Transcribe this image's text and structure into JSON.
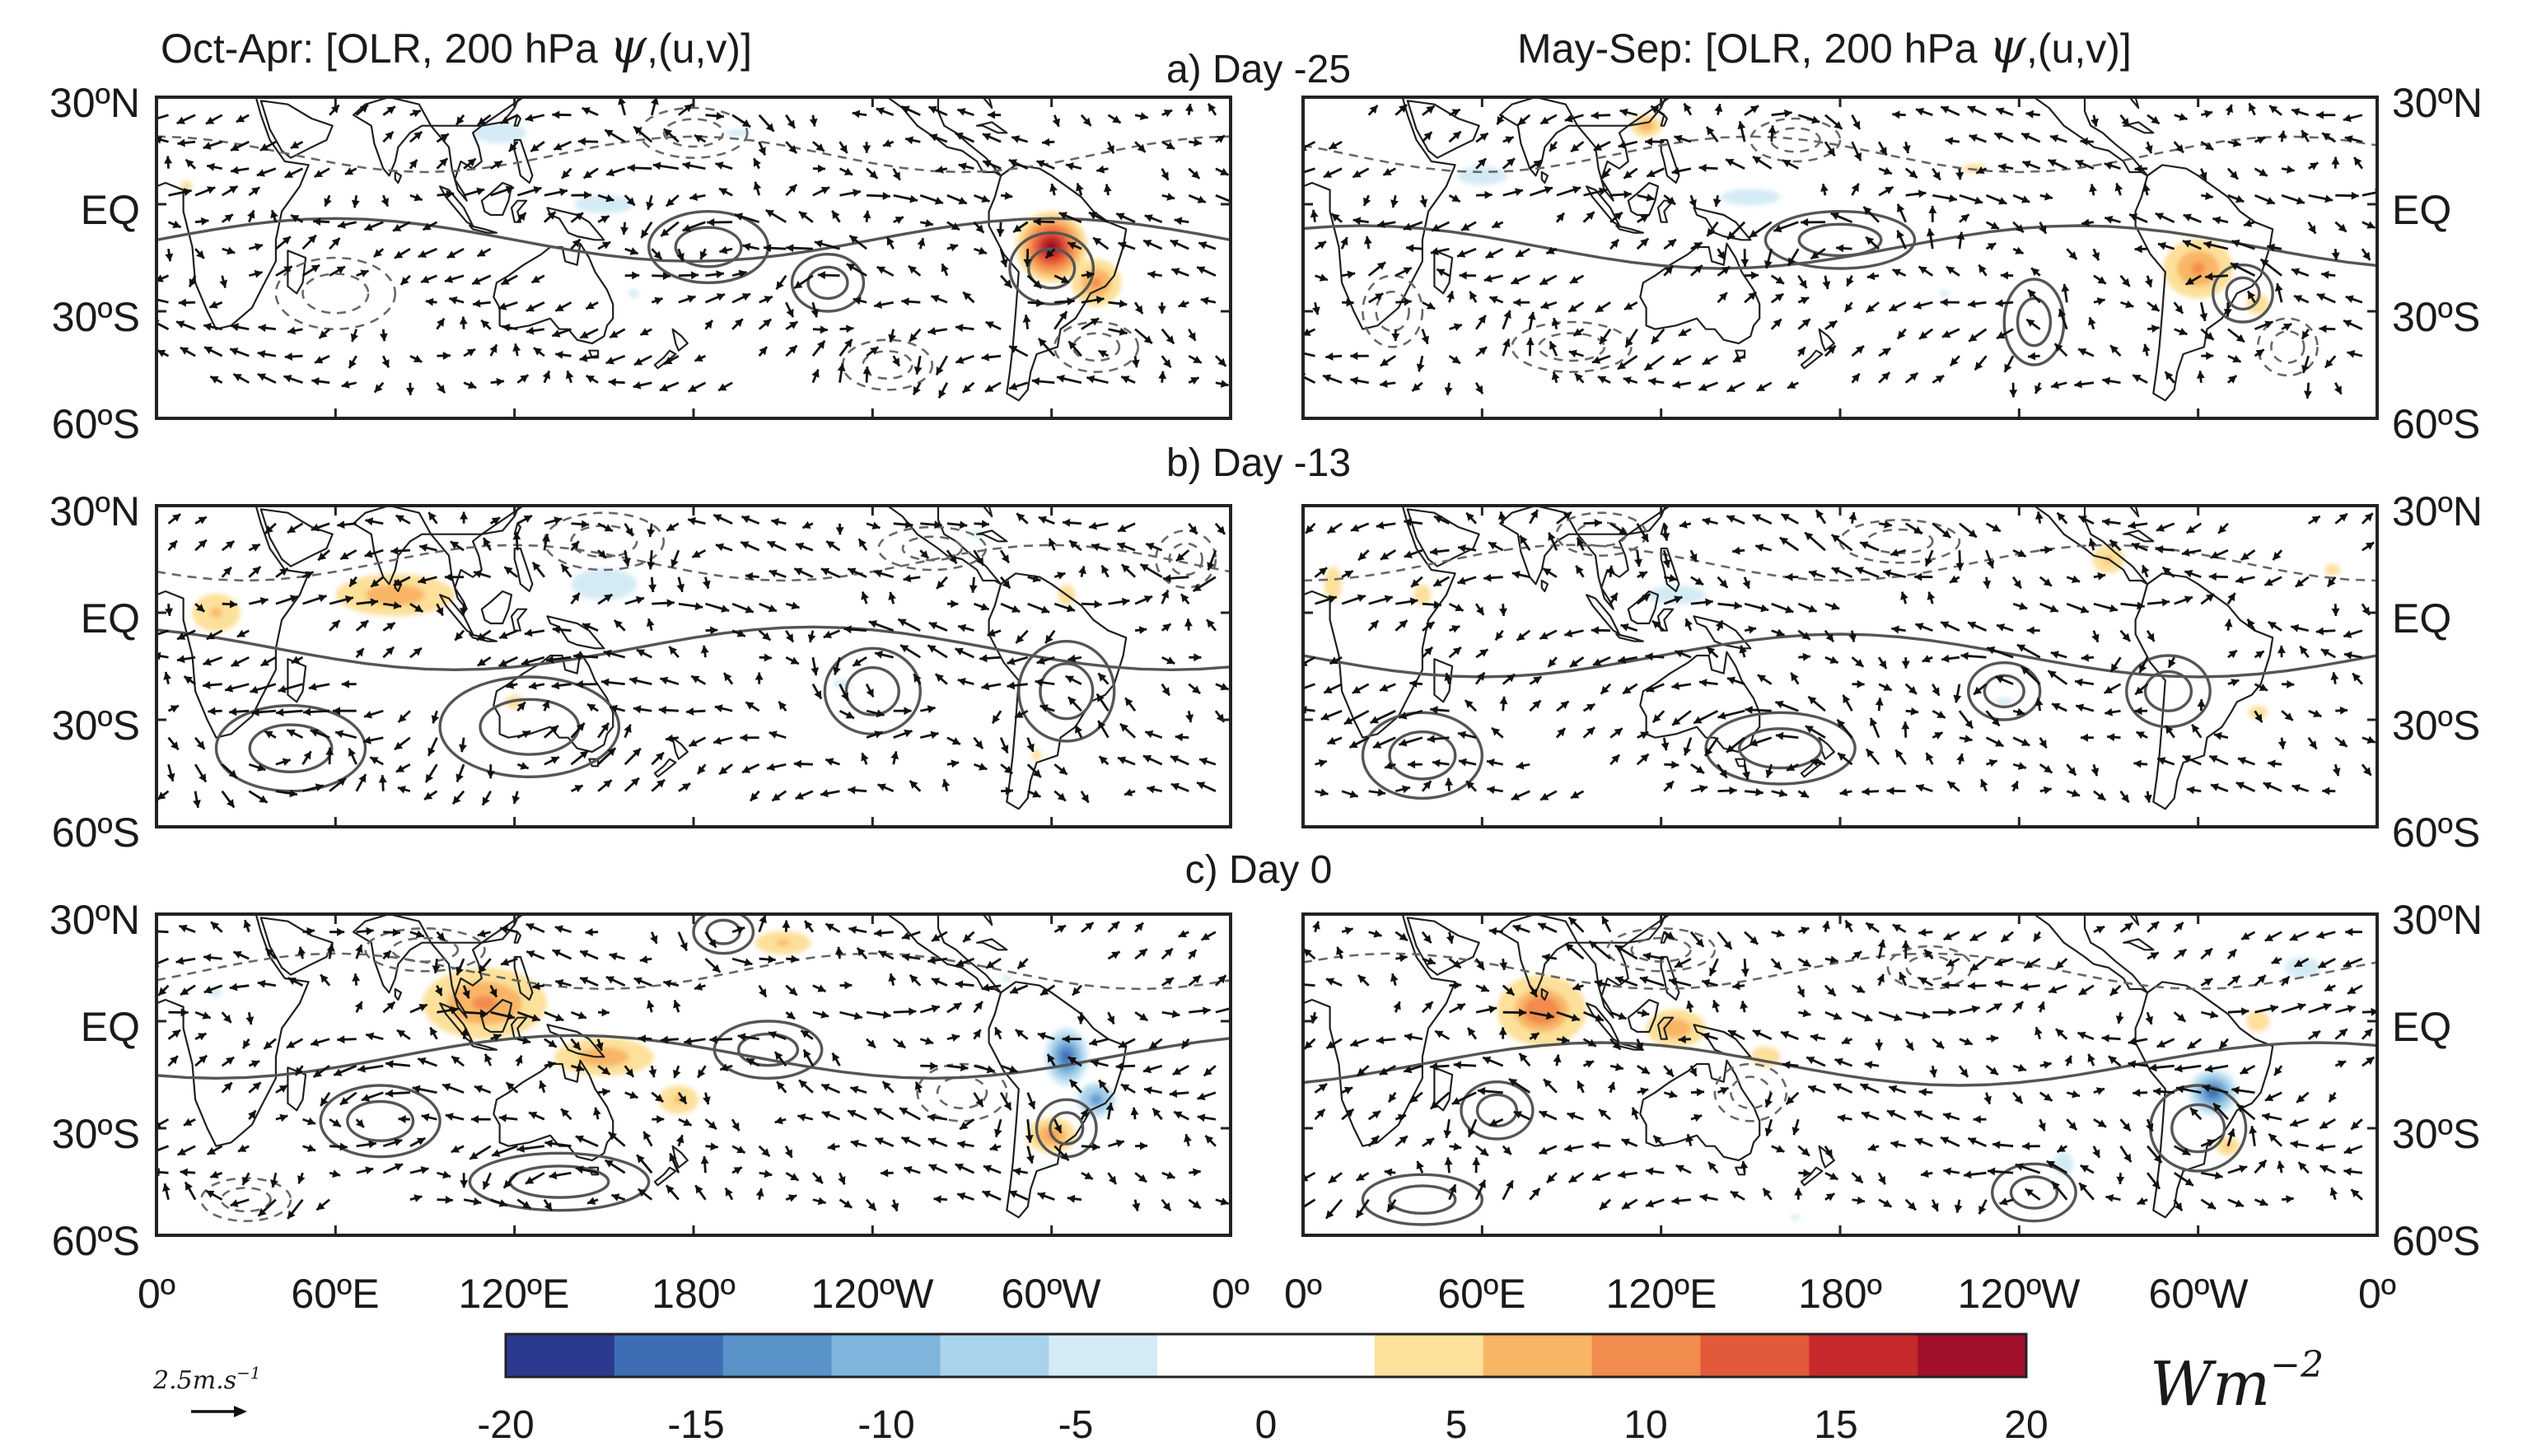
{
  "chart_data": {
    "type": "heatmap",
    "variable": "OLR anomaly composite with 200 hPa streamfunction contours and (u,v) wind vectors",
    "column_titles": {
      "left": {
        "text": "Oct-Apr: [OLR, 200 hPa ",
        "psi": "ψ",
        "tail": ",(u,v)]"
      },
      "right": {
        "text": "May-Sep: [OLR, 200 hPa ",
        "psi": "ψ",
        "tail": ",(u,v)]"
      }
    },
    "rows": [
      {
        "id": "a",
        "title": "a) Day -25"
      },
      {
        "id": "b",
        "title": "b) Day -13"
      },
      {
        "id": "c",
        "title": "c) Day 0"
      }
    ],
    "y_ticks": [
      "30ºN",
      "EQ",
      "30ºS",
      "60ºS"
    ],
    "x_ticks": [
      "0º",
      "60ºE",
      "120ºE",
      "180º",
      "120ºW",
      "60ºW",
      "0º"
    ],
    "lat_range": [
      -60,
      30
    ],
    "lon_range": [
      0,
      360
    ],
    "colorbar": {
      "ticks": [
        "-20",
        "-15",
        "-10",
        "-5",
        "0",
        "5",
        "10",
        "15",
        "20"
      ],
      "range": [
        -20,
        20
      ],
      "unit": "Wm",
      "unit_exponent": "−2",
      "colors": [
        "#2b3a8f",
        "#3f6db3",
        "#5a93c9",
        "#7fb4dc",
        "#a9d3ea",
        "#d4ebf6",
        "#ffffff",
        "#ffffff",
        "#fde09a",
        "#f9b566",
        "#f28b4e",
        "#e35a3a",
        "#c72a2c",
        "#a10f2b"
      ]
    },
    "reference_vector": {
      "label": "2.5m.s",
      "exponent": "−1"
    },
    "panels": [
      {
        "id": "a-left",
        "row": 0,
        "col": 0,
        "olr_blobs": [
          {
            "lon": 300,
            "lat": -12,
            "v": 18,
            "rx": 12,
            "ry": 10
          },
          {
            "lon": 315,
            "lat": -22,
            "v": 9,
            "rx": 10,
            "ry": 8
          },
          {
            "lon": 115,
            "lat": 20,
            "v": -5,
            "rx": 18,
            "ry": 6
          },
          {
            "lon": 150,
            "lat": 0,
            "v": -4,
            "rx": 30,
            "ry": 8
          },
          {
            "lon": 195,
            "lat": 20,
            "v": -3,
            "rx": 25,
            "ry": 6
          },
          {
            "lon": 160,
            "lat": -25,
            "v": -3,
            "rx": 10,
            "ry": 8
          },
          {
            "lon": 10,
            "lat": 5,
            "v": 4,
            "rx": 6,
            "ry": 5
          }
        ],
        "psi_contours": [
          {
            "lon": 185,
            "lat": -12,
            "rx": 20,
            "ry": 10,
            "sign": 1
          },
          {
            "lon": 225,
            "lat": -22,
            "rx": 12,
            "ry": 8,
            "sign": 1
          },
          {
            "lon": 300,
            "lat": -18,
            "rx": 14,
            "ry": 10,
            "sign": 1
          },
          {
            "lon": 60,
            "lat": -25,
            "rx": 20,
            "ry": 10,
            "sign": -1
          },
          {
            "lon": 180,
            "lat": 20,
            "rx": 18,
            "ry": 7,
            "sign": -1
          },
          {
            "lon": 245,
            "lat": -45,
            "rx": 15,
            "ry": 7,
            "sign": -1
          },
          {
            "lon": 315,
            "lat": -40,
            "rx": 14,
            "ry": 7,
            "sign": -1
          }
        ]
      },
      {
        "id": "a-right",
        "row": 0,
        "col": 1,
        "olr_blobs": [
          {
            "lon": 300,
            "lat": -18,
            "v": 10,
            "rx": 14,
            "ry": 10
          },
          {
            "lon": 320,
            "lat": -28,
            "v": 5,
            "rx": 8,
            "ry": 6
          },
          {
            "lon": 115,
            "lat": 22,
            "v": 8,
            "rx": 8,
            "ry": 5
          },
          {
            "lon": 225,
            "lat": 10,
            "v": 4,
            "rx": 12,
            "ry": 4
          },
          {
            "lon": 60,
            "lat": 8,
            "v": -4,
            "rx": 25,
            "ry": 8
          },
          {
            "lon": 150,
            "lat": 2,
            "v": -4,
            "rx": 30,
            "ry": 7
          },
          {
            "lon": 215,
            "lat": -25,
            "v": -3,
            "rx": 10,
            "ry": 6
          }
        ],
        "psi_contours": [
          {
            "lon": 180,
            "lat": -10,
            "rx": 25,
            "ry": 8,
            "sign": 1
          },
          {
            "lon": 245,
            "lat": -33,
            "rx": 10,
            "ry": 12,
            "sign": 1
          },
          {
            "lon": 315,
            "lat": -25,
            "rx": 10,
            "ry": 8,
            "sign": 1
          },
          {
            "lon": 30,
            "lat": -30,
            "rx": 10,
            "ry": 10,
            "sign": -1
          },
          {
            "lon": 90,
            "lat": -40,
            "rx": 20,
            "ry": 7,
            "sign": -1
          },
          {
            "lon": 165,
            "lat": 18,
            "rx": 15,
            "ry": 6,
            "sign": -1
          },
          {
            "lon": 330,
            "lat": -40,
            "rx": 10,
            "ry": 8,
            "sign": -1
          }
        ]
      },
      {
        "id": "b-left",
        "row": 1,
        "col": 0,
        "olr_blobs": [
          {
            "lon": 80,
            "lat": 5,
            "v": 8,
            "rx": 30,
            "ry": 9
          },
          {
            "lon": 20,
            "lat": 0,
            "v": 6,
            "rx": 12,
            "ry": 8
          },
          {
            "lon": 120,
            "lat": -25,
            "v": 4,
            "rx": 10,
            "ry": 6
          },
          {
            "lon": 305,
            "lat": 5,
            "v": 5,
            "rx": 6,
            "ry": 6
          },
          {
            "lon": 295,
            "lat": -40,
            "v": 4,
            "rx": 5,
            "ry": 5
          },
          {
            "lon": 150,
            "lat": 8,
            "v": -5,
            "rx": 22,
            "ry": 9
          },
          {
            "lon": 230,
            "lat": -20,
            "v": -3,
            "rx": 20,
            "ry": 8
          },
          {
            "lon": 275,
            "lat": 22,
            "v": -3,
            "rx": 12,
            "ry": 6
          }
        ],
        "psi_contours": [
          {
            "lon": 240,
            "lat": -22,
            "rx": 16,
            "ry": 12,
            "sign": 1
          },
          {
            "lon": 305,
            "lat": -22,
            "rx": 16,
            "ry": 14,
            "sign": 1
          },
          {
            "lon": 45,
            "lat": -38,
            "rx": 25,
            "ry": 12,
            "sign": 1
          },
          {
            "lon": 125,
            "lat": -32,
            "rx": 30,
            "ry": 14,
            "sign": 1
          },
          {
            "lon": 150,
            "lat": 20,
            "rx": 20,
            "ry": 8,
            "sign": -1
          },
          {
            "lon": 260,
            "lat": 18,
            "rx": 18,
            "ry": 6,
            "sign": -1
          },
          {
            "lon": 345,
            "lat": 15,
            "rx": 10,
            "ry": 8,
            "sign": -1
          }
        ]
      },
      {
        "id": "b-right",
        "row": 1,
        "col": 1,
        "olr_blobs": [
          {
            "lon": 10,
            "lat": 8,
            "v": 5,
            "rx": 6,
            "ry": 10
          },
          {
            "lon": 40,
            "lat": 5,
            "v": 5,
            "rx": 6,
            "ry": 6
          },
          {
            "lon": 270,
            "lat": 15,
            "v": 6,
            "rx": 8,
            "ry": 6
          },
          {
            "lon": 345,
            "lat": 12,
            "v": 4,
            "rx": 8,
            "ry": 5
          },
          {
            "lon": 320,
            "lat": -28,
            "v": 4,
            "rx": 10,
            "ry": 6
          },
          {
            "lon": 125,
            "lat": 5,
            "v": -4,
            "rx": 30,
            "ry": 8
          },
          {
            "lon": 235,
            "lat": -25,
            "v": -3,
            "rx": 18,
            "ry": 7
          }
        ],
        "psi_contours": [
          {
            "lon": 235,
            "lat": -22,
            "rx": 12,
            "ry": 8,
            "sign": 1
          },
          {
            "lon": 290,
            "lat": -22,
            "rx": 14,
            "ry": 10,
            "sign": 1
          },
          {
            "lon": 40,
            "lat": -40,
            "rx": 20,
            "ry": 12,
            "sign": 1
          },
          {
            "lon": 160,
            "lat": -38,
            "rx": 25,
            "ry": 10,
            "sign": 1
          },
          {
            "lon": 100,
            "lat": 22,
            "rx": 15,
            "ry": 6,
            "sign": -1
          },
          {
            "lon": 200,
            "lat": 20,
            "rx": 20,
            "ry": 6,
            "sign": -1
          }
        ]
      },
      {
        "id": "c-left",
        "row": 2,
        "col": 0,
        "olr_blobs": [
          {
            "lon": 110,
            "lat": 5,
            "v": 9,
            "rx": 25,
            "ry": 12
          },
          {
            "lon": 150,
            "lat": -10,
            "v": 7,
            "rx": 25,
            "ry": 8
          },
          {
            "lon": 175,
            "lat": -22,
            "v": 6,
            "rx": 10,
            "ry": 6
          },
          {
            "lon": 210,
            "lat": 22,
            "v": 6,
            "rx": 14,
            "ry": 5
          },
          {
            "lon": 300,
            "lat": -32,
            "v": 10,
            "rx": 10,
            "ry": 6
          },
          {
            "lon": 305,
            "lat": -10,
            "v": -16,
            "rx": 9,
            "ry": 10
          },
          {
            "lon": 315,
            "lat": -22,
            "v": -12,
            "rx": 8,
            "ry": 6
          },
          {
            "lon": 20,
            "lat": 8,
            "v": -3,
            "rx": 12,
            "ry": 8
          },
          {
            "lon": 285,
            "lat": 12,
            "v": -3,
            "rx": 10,
            "ry": 6
          }
        ],
        "psi_contours": [
          {
            "lon": 190,
            "lat": 25,
            "rx": 10,
            "ry": 6,
            "sign": 1
          },
          {
            "lon": 205,
            "lat": -8,
            "rx": 18,
            "ry": 8,
            "sign": 1
          },
          {
            "lon": 305,
            "lat": -30,
            "rx": 10,
            "ry": 8,
            "sign": 1
          },
          {
            "lon": 75,
            "lat": -28,
            "rx": 20,
            "ry": 10,
            "sign": 1
          },
          {
            "lon": 135,
            "lat": -45,
            "rx": 30,
            "ry": 8,
            "sign": 1
          },
          {
            "lon": 270,
            "lat": -20,
            "rx": 15,
            "ry": 8,
            "sign": -1
          },
          {
            "lon": 90,
            "lat": 20,
            "rx": 20,
            "ry": 6,
            "sign": -1
          },
          {
            "lon": 30,
            "lat": -50,
            "rx": 15,
            "ry": 6,
            "sign": -1
          }
        ]
      },
      {
        "id": "c-right",
        "row": 2,
        "col": 1,
        "olr_blobs": [
          {
            "lon": 80,
            "lat": 3,
            "v": 11,
            "rx": 18,
            "ry": 12
          },
          {
            "lon": 125,
            "lat": -2,
            "v": 7,
            "rx": 15,
            "ry": 8
          },
          {
            "lon": 155,
            "lat": -10,
            "v": 5,
            "rx": 10,
            "ry": 6
          },
          {
            "lon": 320,
            "lat": 0,
            "v": 5,
            "rx": 8,
            "ry": 6
          },
          {
            "lon": 305,
            "lat": -20,
            "v": -15,
            "rx": 10,
            "ry": 8
          },
          {
            "lon": 310,
            "lat": -35,
            "v": 6,
            "rx": 6,
            "ry": 4
          },
          {
            "lon": 335,
            "lat": 15,
            "v": -5,
            "rx": 12,
            "ry": 6
          },
          {
            "lon": 255,
            "lat": -40,
            "v": -4,
            "rx": 10,
            "ry": 10
          },
          {
            "lon": 165,
            "lat": -55,
            "v": -3,
            "rx": 10,
            "ry": 5
          }
        ],
        "psi_contours": [
          {
            "lon": 300,
            "lat": -30,
            "rx": 16,
            "ry": 12,
            "sign": 1
          },
          {
            "lon": 65,
            "lat": -25,
            "rx": 12,
            "ry": 8,
            "sign": 1
          },
          {
            "lon": 40,
            "lat": -50,
            "rx": 20,
            "ry": 7,
            "sign": 1
          },
          {
            "lon": 245,
            "lat": -48,
            "rx": 14,
            "ry": 8,
            "sign": 1
          },
          {
            "lon": 150,
            "lat": -20,
            "rx": 12,
            "ry": 8,
            "sign": -1
          },
          {
            "lon": 210,
            "lat": 15,
            "rx": 14,
            "ry": 6,
            "sign": -1
          },
          {
            "lon": 120,
            "lat": 20,
            "rx": 18,
            "ry": 6,
            "sign": -1
          }
        ]
      }
    ]
  }
}
